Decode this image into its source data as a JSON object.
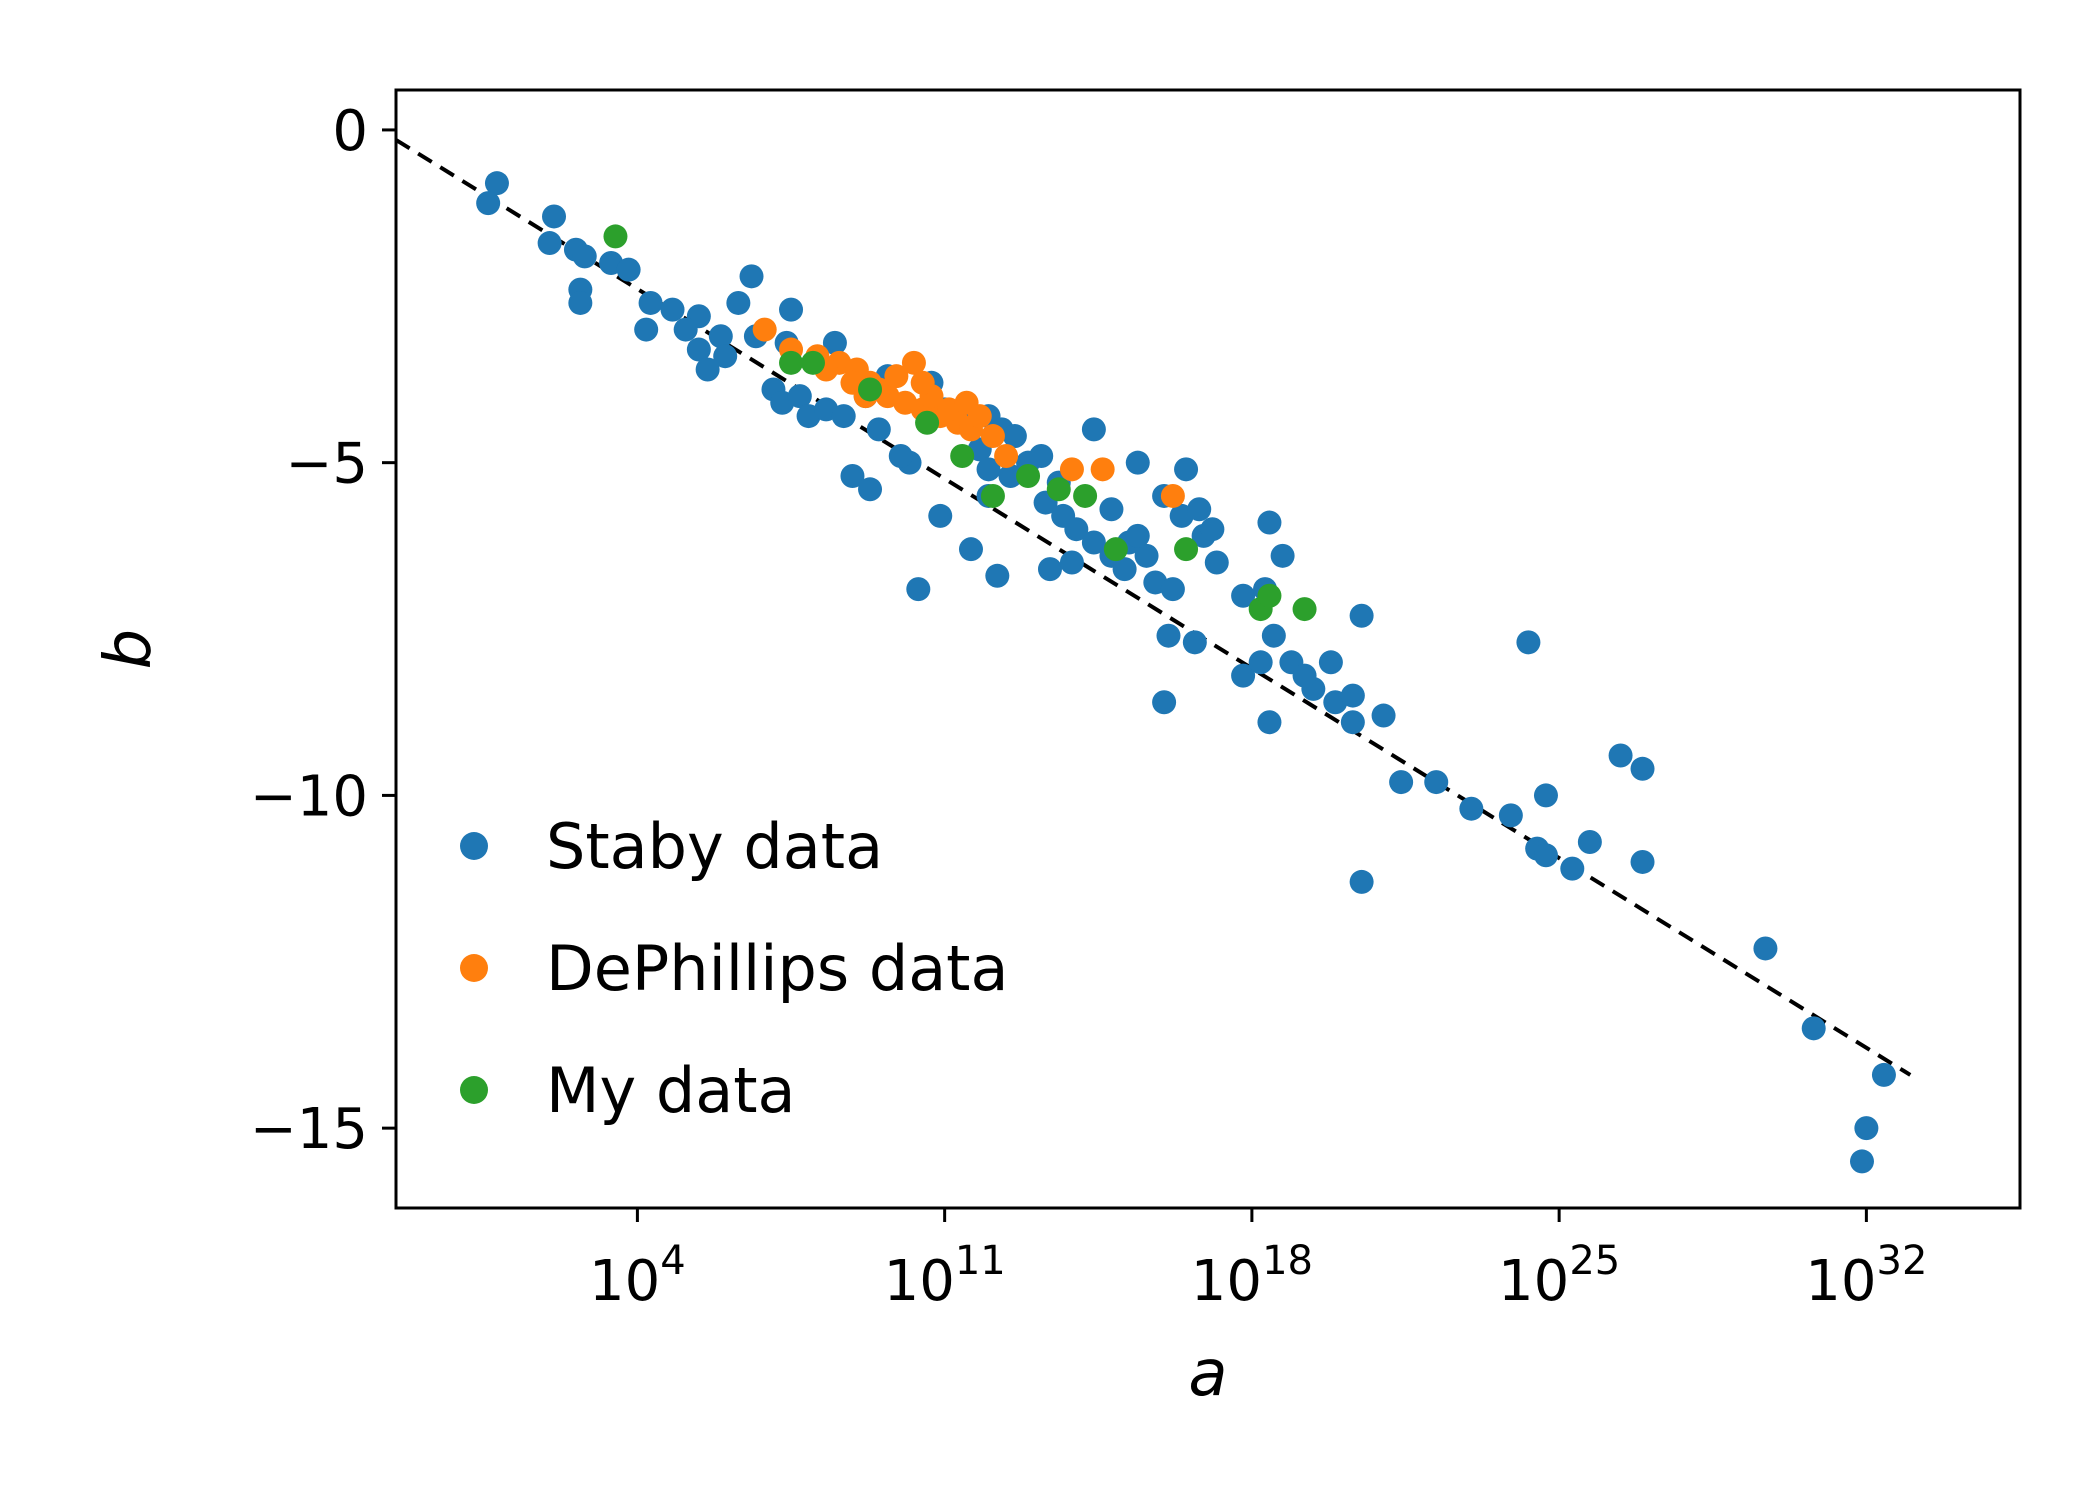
{
  "chart_data": {
    "type": "scatter",
    "title": "",
    "xlabel": "a",
    "ylabel": "b",
    "x_scale": "log",
    "x_unit_note": "values are log10(a)",
    "xlim_log10": [
      -1.5,
      35.5
    ],
    "ylim": [
      -16.2,
      0.6
    ],
    "grid": false,
    "legend_position": "lower-left",
    "x_ticks": [
      {
        "value": 4,
        "base": "10",
        "exp": "4"
      },
      {
        "value": 11,
        "base": "10",
        "exp": "11"
      },
      {
        "value": 18,
        "base": "10",
        "exp": "18"
      },
      {
        "value": 25,
        "base": "10",
        "exp": "25"
      },
      {
        "value": 32,
        "base": "10",
        "exp": "32"
      }
    ],
    "y_ticks": [
      {
        "value": 0,
        "label": "0"
      },
      {
        "value": -5,
        "label": "−5"
      },
      {
        "value": -10,
        "label": "−10"
      },
      {
        "value": -15,
        "label": "−15"
      }
    ],
    "fit_line": {
      "style": "dashed",
      "color": "#000000",
      "points_log10x_y": [
        [
          -1.5,
          -0.15
        ],
        [
          33.0,
          -14.2
        ]
      ]
    },
    "series": [
      {
        "name": "Staby data",
        "color": "#1f77b4",
        "points_log10x_y": [
          [
            0.8,
            -0.8
          ],
          [
            0.6,
            -1.1
          ],
          [
            2.1,
            -1.3
          ],
          [
            2.0,
            -1.7
          ],
          [
            2.6,
            -1.8
          ],
          [
            2.8,
            -1.9
          ],
          [
            3.4,
            -2.0
          ],
          [
            3.8,
            -2.1
          ],
          [
            2.7,
            -2.4
          ],
          [
            2.7,
            -2.6
          ],
          [
            4.3,
            -2.6
          ],
          [
            4.8,
            -2.7
          ],
          [
            5.4,
            -2.8
          ],
          [
            4.2,
            -3.0
          ],
          [
            5.1,
            -3.0
          ],
          [
            5.9,
            -3.1
          ],
          [
            5.4,
            -3.3
          ],
          [
            6.0,
            -3.4
          ],
          [
            5.6,
            -3.6
          ],
          [
            6.3,
            -2.6
          ],
          [
            6.6,
            -2.2
          ],
          [
            7.5,
            -2.7
          ],
          [
            6.7,
            -3.1
          ],
          [
            7.4,
            -3.2
          ],
          [
            8.5,
            -3.2
          ],
          [
            7.1,
            -3.9
          ],
          [
            7.3,
            -4.1
          ],
          [
            7.7,
            -4.0
          ],
          [
            7.9,
            -4.3
          ],
          [
            8.3,
            -4.2
          ],
          [
            8.7,
            -4.3
          ],
          [
            9.2,
            -4.0
          ],
          [
            9.5,
            -4.5
          ],
          [
            8.9,
            -5.2
          ],
          [
            9.3,
            -5.4
          ],
          [
            10.2,
            -5.0
          ],
          [
            10.0,
            -4.9
          ],
          [
            9.7,
            -3.7
          ],
          [
            10.7,
            -3.8
          ],
          [
            11.0,
            -4.2
          ],
          [
            11.5,
            -4.3
          ],
          [
            12.0,
            -4.3
          ],
          [
            12.3,
            -4.5
          ],
          [
            12.6,
            -4.6
          ],
          [
            11.8,
            -4.8
          ],
          [
            12.0,
            -5.1
          ],
          [
            12.5,
            -5.2
          ],
          [
            12.9,
            -5.0
          ],
          [
            13.2,
            -4.9
          ],
          [
            12.0,
            -5.5
          ],
          [
            13.3,
            -5.6
          ],
          [
            13.7,
            -5.8
          ],
          [
            14.0,
            -6.0
          ],
          [
            14.4,
            -6.2
          ],
          [
            14.8,
            -6.4
          ],
          [
            15.1,
            -6.6
          ],
          [
            15.6,
            -6.4
          ],
          [
            15.8,
            -6.8
          ],
          [
            16.2,
            -6.9
          ],
          [
            16.0,
            -5.5
          ],
          [
            16.4,
            -5.8
          ],
          [
            16.9,
            -6.1
          ],
          [
            17.2,
            -6.5
          ],
          [
            17.8,
            -7.0
          ],
          [
            18.3,
            -6.9
          ],
          [
            18.5,
            -7.6
          ],
          [
            18.9,
            -8.0
          ],
          [
            19.4,
            -8.4
          ],
          [
            18.4,
            -8.9
          ],
          [
            19.9,
            -8.6
          ],
          [
            20.3,
            -8.9
          ],
          [
            21.0,
            -8.8
          ],
          [
            10.9,
            -5.8
          ],
          [
            11.6,
            -6.3
          ],
          [
            12.2,
            -6.7
          ],
          [
            10.4,
            -6.9
          ],
          [
            13.4,
            -6.6
          ],
          [
            13.9,
            -6.5
          ],
          [
            14.4,
            -4.5
          ],
          [
            15.4,
            -5.0
          ],
          [
            16.1,
            -7.6
          ],
          [
            16.0,
            -8.6
          ],
          [
            16.7,
            -7.7
          ],
          [
            17.8,
            -8.2
          ],
          [
            18.4,
            -5.9
          ],
          [
            18.2,
            -8.0
          ],
          [
            18.7,
            -6.4
          ],
          [
            19.2,
            -8.2
          ],
          [
            19.8,
            -8.0
          ],
          [
            20.3,
            -8.5
          ],
          [
            20.5,
            -7.3
          ],
          [
            20.5,
            -11.3
          ],
          [
            21.4,
            -9.8
          ],
          [
            22.2,
            -9.8
          ],
          [
            23.0,
            -10.2
          ],
          [
            23.9,
            -10.3
          ],
          [
            24.3,
            -7.7
          ],
          [
            24.5,
            -10.8
          ],
          [
            24.7,
            -10.9
          ],
          [
            24.7,
            -10.0
          ],
          [
            25.3,
            -11.1
          ],
          [
            25.7,
            -10.7
          ],
          [
            26.4,
            -9.4
          ],
          [
            26.9,
            -9.6
          ],
          [
            26.9,
            -11.0
          ],
          [
            29.7,
            -12.3
          ],
          [
            30.8,
            -13.5
          ],
          [
            31.9,
            -15.5
          ],
          [
            32.0,
            -15.0
          ],
          [
            32.4,
            -14.2
          ],
          [
            15.2,
            -6.2
          ],
          [
            16.8,
            -5.7
          ],
          [
            17.1,
            -6.0
          ],
          [
            14.8,
            -5.7
          ],
          [
            13.6,
            -5.3
          ],
          [
            16.5,
            -5.1
          ],
          [
            15.4,
            -6.1
          ]
        ]
      },
      {
        "name": "DePhillips data",
        "color": "#ff7f0e",
        "points_log10x_y": [
          [
            6.9,
            -3.0
          ],
          [
            7.5,
            -3.3
          ],
          [
            8.1,
            -3.4
          ],
          [
            8.6,
            -3.5
          ],
          [
            9.0,
            -3.6
          ],
          [
            9.3,
            -3.8
          ],
          [
            9.7,
            -4.0
          ],
          [
            10.1,
            -4.1
          ],
          [
            10.5,
            -4.2
          ],
          [
            10.9,
            -4.3
          ],
          [
            11.3,
            -4.4
          ],
          [
            11.6,
            -4.5
          ],
          [
            8.3,
            -3.6
          ],
          [
            8.9,
            -3.8
          ],
          [
            9.5,
            -3.9
          ],
          [
            9.9,
            -3.7
          ],
          [
            10.3,
            -3.5
          ],
          [
            10.7,
            -4.0
          ],
          [
            11.1,
            -4.2
          ],
          [
            11.5,
            -4.1
          ],
          [
            11.8,
            -4.3
          ],
          [
            12.1,
            -4.6
          ],
          [
            12.4,
            -4.9
          ],
          [
            13.9,
            -5.1
          ],
          [
            14.6,
            -5.1
          ],
          [
            16.2,
            -5.5
          ],
          [
            9.2,
            -4.0
          ],
          [
            10.5,
            -3.8
          ]
        ]
      },
      {
        "name": "My data",
        "color": "#2ca02c",
        "points_log10x_y": [
          [
            3.5,
            -1.6
          ],
          [
            7.5,
            -3.5
          ],
          [
            8.0,
            -3.5
          ],
          [
            9.3,
            -3.9
          ],
          [
            10.6,
            -4.4
          ],
          [
            11.4,
            -4.9
          ],
          [
            12.1,
            -5.5
          ],
          [
            12.9,
            -5.2
          ],
          [
            13.6,
            -5.4
          ],
          [
            14.2,
            -5.5
          ],
          [
            14.9,
            -6.3
          ],
          [
            16.5,
            -6.3
          ],
          [
            18.2,
            -7.2
          ],
          [
            18.4,
            -7.0
          ],
          [
            19.2,
            -7.2
          ]
        ]
      }
    ]
  }
}
